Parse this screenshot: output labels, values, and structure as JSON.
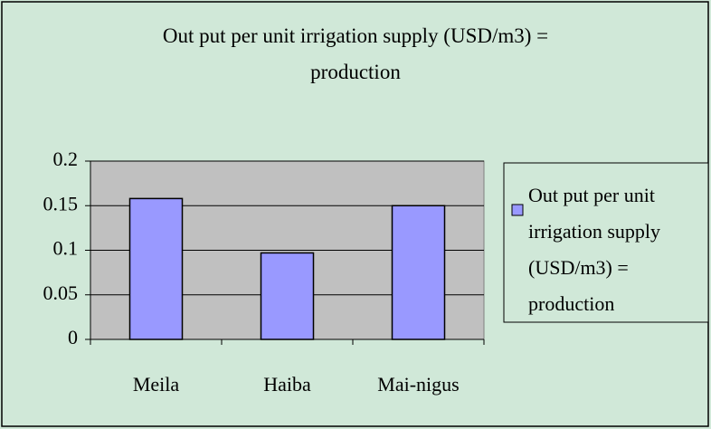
{
  "chart_data": {
    "type": "bar",
    "title": "Out put per unit irrigation supply (USD/m3) = production",
    "categories": [
      "Meila",
      "Haiba",
      "Mai-nigus"
    ],
    "series": [
      {
        "name": "Out put per unit irrigation supply (USD/m3) = production",
        "color": "#9999ff",
        "values": [
          0.158,
          0.097,
          0.15
        ]
      }
    ],
    "ylim": [
      0,
      0.2
    ],
    "yticks": [
      0,
      0.05,
      0.1,
      0.15,
      0.2
    ],
    "grid": true,
    "legend": "right"
  }
}
